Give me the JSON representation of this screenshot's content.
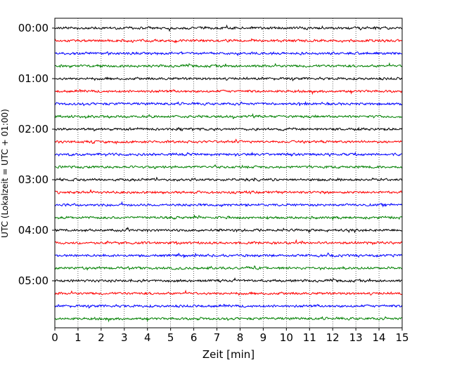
{
  "chart_data": {
    "type": "line",
    "title": "",
    "xlabel": "Zeit  [min]",
    "ylabel": "UTC (Lokalzeit = UTC + 01:00)",
    "xlim": [
      0,
      15
    ],
    "x_ticks": [
      0,
      1,
      2,
      3,
      4,
      5,
      6,
      7,
      8,
      9,
      10,
      11,
      12,
      13,
      14,
      15
    ],
    "grid": "vertical dotted lines at each minute",
    "y_tick_labels": [
      "00:00",
      "01:00",
      "02:00",
      "03:00",
      "04:00",
      "05:00"
    ],
    "trace_interval_min": 15,
    "trace_count": 24,
    "trace_colors": [
      "#000000",
      "#ff0000",
      "#0000ff",
      "#008000"
    ],
    "series": [
      {
        "start": "00:00",
        "color": "#000000"
      },
      {
        "start": "00:15",
        "color": "#ff0000"
      },
      {
        "start": "00:30",
        "color": "#0000ff"
      },
      {
        "start": "00:45",
        "color": "#008000"
      },
      {
        "start": "01:00",
        "color": "#000000"
      },
      {
        "start": "01:15",
        "color": "#ff0000"
      },
      {
        "start": "01:30",
        "color": "#0000ff"
      },
      {
        "start": "01:45",
        "color": "#008000"
      },
      {
        "start": "02:00",
        "color": "#000000"
      },
      {
        "start": "02:15",
        "color": "#ff0000"
      },
      {
        "start": "02:30",
        "color": "#0000ff"
      },
      {
        "start": "02:45",
        "color": "#008000"
      },
      {
        "start": "03:00",
        "color": "#000000"
      },
      {
        "start": "03:15",
        "color": "#ff0000"
      },
      {
        "start": "03:30",
        "color": "#0000ff"
      },
      {
        "start": "03:45",
        "color": "#008000"
      },
      {
        "start": "04:00",
        "color": "#000000"
      },
      {
        "start": "04:15",
        "color": "#ff0000"
      },
      {
        "start": "04:30",
        "color": "#0000ff"
      },
      {
        "start": "04:45",
        "color": "#008000"
      },
      {
        "start": "05:00",
        "color": "#000000"
      },
      {
        "start": "05:15",
        "color": "#ff0000"
      },
      {
        "start": "05:30",
        "color": "#0000ff"
      },
      {
        "start": "05:45",
        "color": "#008000"
      }
    ]
  }
}
